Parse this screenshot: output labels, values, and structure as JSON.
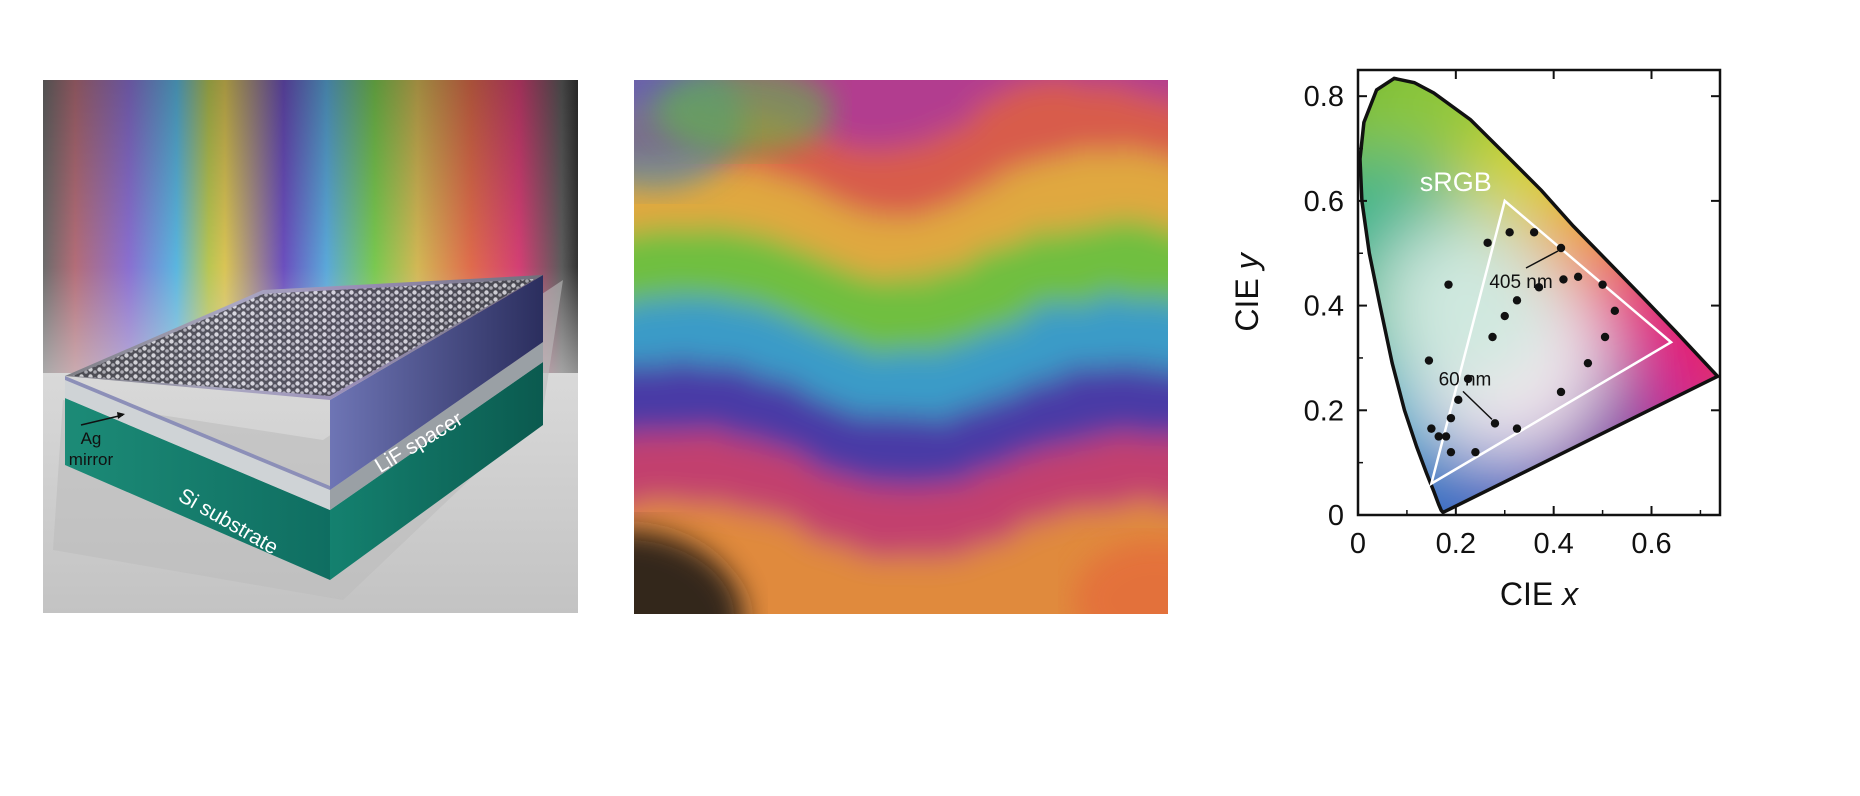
{
  "panels": {
    "device": {
      "labels": {
        "lif_spacer": "LiF spacer",
        "si_substrate": "Si substrate",
        "ag_mirror_line1": "Ag",
        "ag_mirror_line2": "mirror"
      }
    },
    "color_map": {}
  },
  "chart_data": {
    "type": "scatter",
    "xlabel": "CIE x",
    "ylabel": "CIE y",
    "xlim": [
      0,
      0.74
    ],
    "ylim": [
      0,
      0.85
    ],
    "xticks": [
      "0",
      "0.2",
      "0.4",
      "0.6"
    ],
    "yticks": [
      "0",
      "0.2",
      "0.4",
      "0.6",
      "0.8"
    ],
    "gamut_label": "sRGB",
    "gamut": [
      [
        0.64,
        0.33
      ],
      [
        0.3,
        0.6
      ],
      [
        0.15,
        0.06
      ]
    ],
    "annotations": [
      {
        "text": "405 nm",
        "point": [
          0.415,
          0.51
        ]
      },
      {
        "text": "60 nm",
        "point": [
          0.28,
          0.175
        ]
      }
    ],
    "points": [
      [
        0.265,
        0.52
      ],
      [
        0.31,
        0.54
      ],
      [
        0.36,
        0.54
      ],
      [
        0.415,
        0.51
      ],
      [
        0.185,
        0.44
      ],
      [
        0.37,
        0.435
      ],
      [
        0.42,
        0.45
      ],
      [
        0.45,
        0.455
      ],
      [
        0.5,
        0.44
      ],
      [
        0.325,
        0.41
      ],
      [
        0.525,
        0.39
      ],
      [
        0.3,
        0.38
      ],
      [
        0.275,
        0.34
      ],
      [
        0.505,
        0.34
      ],
      [
        0.145,
        0.295
      ],
      [
        0.47,
        0.29
      ],
      [
        0.225,
        0.26
      ],
      [
        0.205,
        0.22
      ],
      [
        0.415,
        0.235
      ],
      [
        0.19,
        0.185
      ],
      [
        0.28,
        0.175
      ],
      [
        0.15,
        0.165
      ],
      [
        0.165,
        0.15
      ],
      [
        0.18,
        0.15
      ],
      [
        0.325,
        0.165
      ],
      [
        0.19,
        0.12
      ],
      [
        0.24,
        0.12
      ]
    ],
    "grid": false,
    "legend": "none"
  }
}
